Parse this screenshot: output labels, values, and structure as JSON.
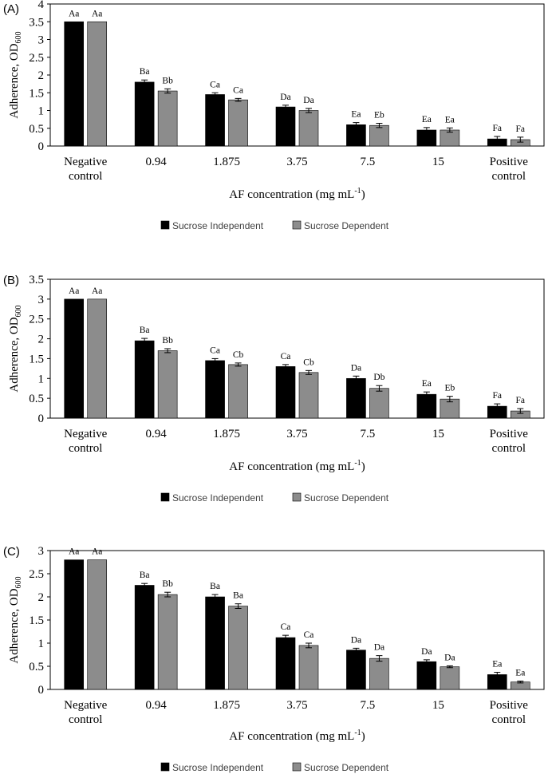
{
  "colors": {
    "independent": "#000000",
    "dependent": "#8c8c8c",
    "axis": "#000000",
    "frame": "#000000",
    "legend_text": "#404040"
  },
  "chart_data": [
    {
      "panel_label": "(A)",
      "type": "bar",
      "title": "",
      "xlabel": "AF concentration (mg mL",
      "xlabel_sup": "-1",
      "xlabel_end": ")",
      "ylabel": "Adherence, OD",
      "ylabel_sub": "600",
      "ylim": [
        0,
        4
      ],
      "yticks": [
        0,
        0.5,
        1,
        1.5,
        2,
        2.5,
        3,
        3.5,
        4
      ],
      "ytick_labels": [
        "0",
        "0.5",
        "1",
        "1.5",
        "2",
        "2.5",
        "3",
        "3.5",
        "4"
      ],
      "categories": [
        [
          "Negative",
          "control"
        ],
        [
          "0.94"
        ],
        [
          "1.875"
        ],
        [
          "3.75"
        ],
        [
          "7.5"
        ],
        [
          "15"
        ],
        [
          "Positive",
          "control"
        ]
      ],
      "series": [
        {
          "name": "Sucrose Independent",
          "values": [
            3.5,
            1.8,
            1.45,
            1.1,
            0.6,
            0.45,
            0.2
          ],
          "errors": [
            0,
            0.06,
            0.05,
            0.05,
            0.06,
            0.07,
            0.07
          ],
          "labels": [
            "Aa",
            "Ba",
            "Ca",
            "Da",
            "Ea",
            "Ea",
            "Fa"
          ]
        },
        {
          "name": "Sucrose Dependent",
          "values": [
            3.5,
            1.55,
            1.3,
            1.0,
            0.58,
            0.45,
            0.18
          ],
          "errors": [
            0,
            0.06,
            0.04,
            0.06,
            0.06,
            0.06,
            0.07
          ],
          "labels": [
            "Aa",
            "Bb",
            "Ca",
            "Da",
            "Eb",
            "Ea",
            "Fa"
          ]
        }
      ],
      "legend": [
        "Sucrose Independent",
        "Sucrose Dependent"
      ],
      "legend_position": "bottom"
    },
    {
      "panel_label": "(B)",
      "type": "bar",
      "title": "",
      "xlabel": "AF concentration (mg mL",
      "xlabel_sup": "-1",
      "xlabel_end": ")",
      "ylabel": "Adherence, OD",
      "ylabel_sub": "600",
      "ylim": [
        0,
        3.5
      ],
      "yticks": [
        0,
        0.5,
        1,
        1.5,
        2,
        2.5,
        3,
        3.5
      ],
      "ytick_labels": [
        "0",
        "0.5",
        "1",
        "1.5",
        "2",
        "2.5",
        "3",
        "3.5"
      ],
      "categories": [
        [
          "Negative",
          "control"
        ],
        [
          "0.94"
        ],
        [
          "1.875"
        ],
        [
          "3.75"
        ],
        [
          "7.5"
        ],
        [
          "15"
        ],
        [
          "Positive",
          "control"
        ]
      ],
      "series": [
        {
          "name": "Sucrose Independent",
          "values": [
            3.0,
            1.95,
            1.45,
            1.3,
            1.0,
            0.6,
            0.3
          ],
          "errors": [
            0,
            0.06,
            0.05,
            0.05,
            0.06,
            0.06,
            0.06
          ],
          "labels": [
            "Aa",
            "Ba",
            "Ca",
            "Ca",
            "Da",
            "Ea",
            "Fa"
          ]
        },
        {
          "name": "Sucrose Dependent",
          "values": [
            3.0,
            1.7,
            1.35,
            1.15,
            0.75,
            0.48,
            0.18
          ],
          "errors": [
            0,
            0.05,
            0.04,
            0.05,
            0.07,
            0.07,
            0.06
          ],
          "labels": [
            "Aa",
            "Bb",
            "Cb",
            "Cb",
            "Db",
            "Eb",
            "Fa"
          ]
        }
      ],
      "legend": [
        "Sucrose Independent",
        "Sucrose Dependent"
      ],
      "legend_position": "bottom"
    },
    {
      "panel_label": "(C)",
      "type": "bar",
      "title": "",
      "xlabel": "AF concentration (mg mL",
      "xlabel_sup": "-1",
      "xlabel_end": ")",
      "ylabel": "Adherence, OD",
      "ylabel_sub": "600",
      "ylim": [
        0,
        3
      ],
      "yticks": [
        0,
        0.5,
        1,
        1.5,
        2,
        2.5,
        3
      ],
      "ytick_labels": [
        "0",
        "0.5",
        "1",
        "1.5",
        "2",
        "2.5",
        "3"
      ],
      "categories": [
        [
          "Negative",
          "control"
        ],
        [
          "0.94"
        ],
        [
          "1.875"
        ],
        [
          "3.75"
        ],
        [
          "7.5"
        ],
        [
          "15"
        ],
        [
          "Positive",
          "control"
        ]
      ],
      "series": [
        {
          "name": "Sucrose Independent",
          "values": [
            2.8,
            2.25,
            2.0,
            1.12,
            0.85,
            0.6,
            0.32
          ],
          "errors": [
            0,
            0.04,
            0.05,
            0.05,
            0.04,
            0.04,
            0.05
          ],
          "labels": [
            "Aa",
            "Ba",
            "Ba",
            "Ca",
            "Da",
            "Da",
            "Ea"
          ]
        },
        {
          "name": "Sucrose Dependent",
          "values": [
            2.8,
            2.05,
            1.8,
            0.95,
            0.67,
            0.49,
            0.16
          ],
          "errors": [
            0,
            0.05,
            0.05,
            0.05,
            0.06,
            0.02,
            0.02
          ],
          "labels": [
            "Aa",
            "Bb",
            "Ba",
            "Ca",
            "Da",
            "Da",
            "Ea"
          ]
        }
      ],
      "legend": [
        "Sucrose Independent",
        "Sucrose Dependent"
      ],
      "legend_position": "bottom"
    }
  ]
}
